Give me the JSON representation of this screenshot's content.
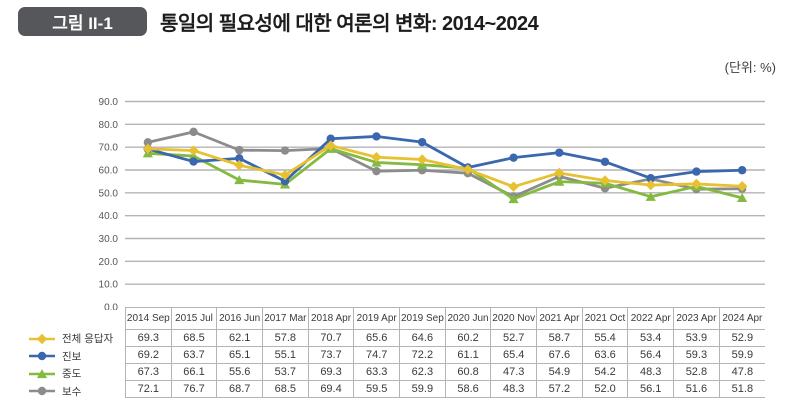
{
  "figure": {
    "badge": "그림 II-1",
    "title": "통일의 필요성에 대한 여론의 변화: 2014~2024",
    "unit_label": "(단위: %)"
  },
  "chart_data": {
    "type": "line",
    "title": "통일의 필요성에 대한 여론의 변화: 2014~2024",
    "unit": "%",
    "categories": [
      "2014 Sep",
      "2015 Jul",
      "2016 Jun",
      "2017 Mar",
      "2018 Apr",
      "2019 Apr",
      "2019 Sep",
      "2020 Jun",
      "2020 Nov",
      "2021 Apr",
      "2021 Oct",
      "2022 Apr",
      "2023 Apr",
      "2024 Apr"
    ],
    "series": [
      {
        "name": "전체 응답자",
        "marker": "diamond",
        "color": "#e8c132",
        "values": [
          69.3,
          68.5,
          62.1,
          57.8,
          70.7,
          65.6,
          64.6,
          60.2,
          52.7,
          58.7,
          55.4,
          53.4,
          53.9,
          52.9
        ]
      },
      {
        "name": "진보",
        "marker": "circle",
        "color": "#3a67ad",
        "values": [
          69.2,
          63.7,
          65.1,
          55.1,
          73.7,
          74.7,
          72.2,
          61.1,
          65.4,
          67.6,
          63.6,
          56.4,
          59.3,
          59.9
        ]
      },
      {
        "name": "중도",
        "marker": "triangle",
        "color": "#84ba3f",
        "values": [
          67.3,
          66.1,
          55.6,
          53.7,
          69.3,
          63.3,
          62.3,
          60.8,
          47.3,
          54.9,
          54.2,
          48.3,
          52.8,
          47.8
        ]
      },
      {
        "name": "보수",
        "marker": "circle",
        "color": "#8c8c8c",
        "values": [
          72.1,
          76.7,
          68.7,
          68.5,
          69.4,
          59.5,
          59.9,
          58.6,
          48.3,
          57.2,
          52.0,
          56.1,
          51.6,
          51.8
        ]
      }
    ],
    "ylim": [
      0,
      90
    ],
    "ytick_step": 10,
    "ytick_format": "one_decimal",
    "grid": "horizontal-only",
    "gridline_color": "#b4b4b4",
    "legend_position": "left-of-table"
  }
}
